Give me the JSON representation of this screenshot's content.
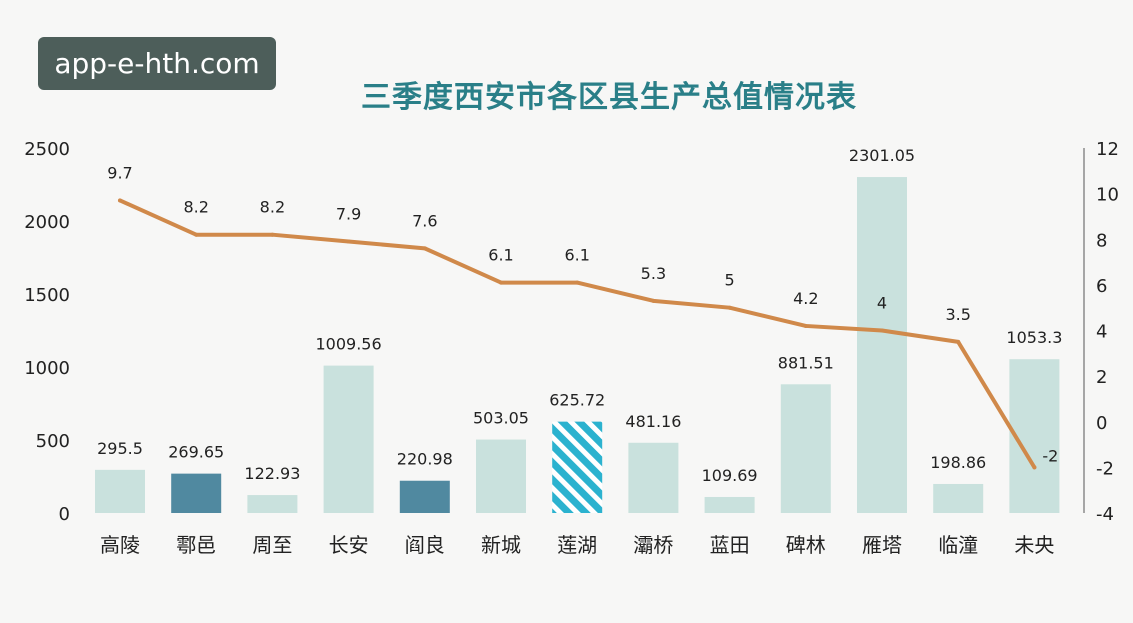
{
  "watermark": "app-e-hth.com",
  "colors": {
    "bar": "#c9e1dd",
    "bar_dark": "#5089a0",
    "bar_hatched": "#2bb2cf",
    "line": "#d0894a"
  },
  "chart_data": {
    "type": "bar",
    "title": "三季度西安市各区县生产总值情况表",
    "categories": [
      "高陵",
      "鄠邑",
      "周至",
      "长安",
      "阎良",
      "新城",
      "莲湖",
      "灞桥",
      "蓝田",
      "碑林",
      "雁塔",
      "临潼",
      "未央"
    ],
    "series": [
      {
        "type": "bar",
        "axis": "left",
        "values": [
          295.5,
          269.65,
          122.93,
          1009.56,
          220.98,
          503.05,
          625.72,
          481.16,
          109.69,
          881.51,
          2301.05,
          198.86,
          1053.3
        ],
        "labels": [
          "295.5",
          "269.65",
          "122.93",
          "1009.56",
          "220.98",
          "503.05",
          "625.72",
          "481.16",
          "109.69",
          "881.51",
          "2301.05",
          "198.86",
          "1053.3"
        ],
        "styles": [
          "light",
          "dark",
          "light",
          "light",
          "dark",
          "light",
          "hatched",
          "light",
          "light",
          "light",
          "light",
          "light",
          "light"
        ]
      },
      {
        "type": "line",
        "axis": "right",
        "values": [
          9.7,
          8.2,
          8.2,
          7.9,
          7.6,
          6.1,
          6.1,
          5.3,
          5,
          4.2,
          4,
          3.5,
          -2
        ],
        "labels": [
          "9.7",
          "8.2",
          "8.2",
          "7.9",
          "7.6",
          "6.1",
          "6.1",
          "5.3",
          "5",
          "4.2",
          "4",
          "3.5",
          "-2"
        ]
      }
    ],
    "y_left": {
      "ylim": [
        0,
        2500
      ],
      "ticks": [
        "0",
        "500",
        "1000",
        "1500",
        "2000",
        "2500"
      ]
    },
    "y_right": {
      "ylim": [
        -4,
        12
      ],
      "ticks": [
        "-4",
        "-2",
        "0",
        "2",
        "4",
        "6",
        "8",
        "10",
        "12"
      ]
    },
    "grid": false
  }
}
